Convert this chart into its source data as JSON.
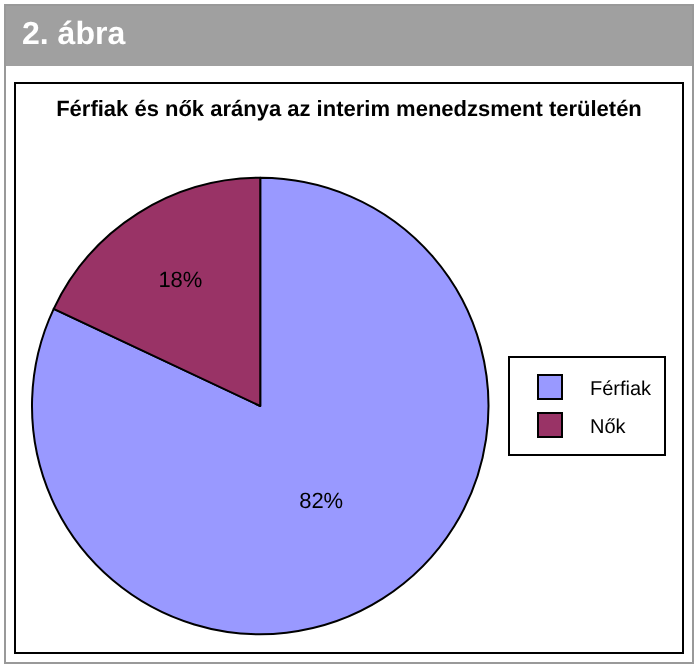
{
  "chart_data": {
    "type": "pie",
    "title": "Férfiak és nők aránya az interim menedzsment területén",
    "annotations": [
      "2. ábra"
    ],
    "categories": [
      "Férfiak",
      "Nők"
    ],
    "values": [
      82,
      18
    ],
    "value_labels": [
      "82%",
      "18%"
    ],
    "colors": [
      "#9999ff",
      "#993366"
    ],
    "legend": "right"
  }
}
